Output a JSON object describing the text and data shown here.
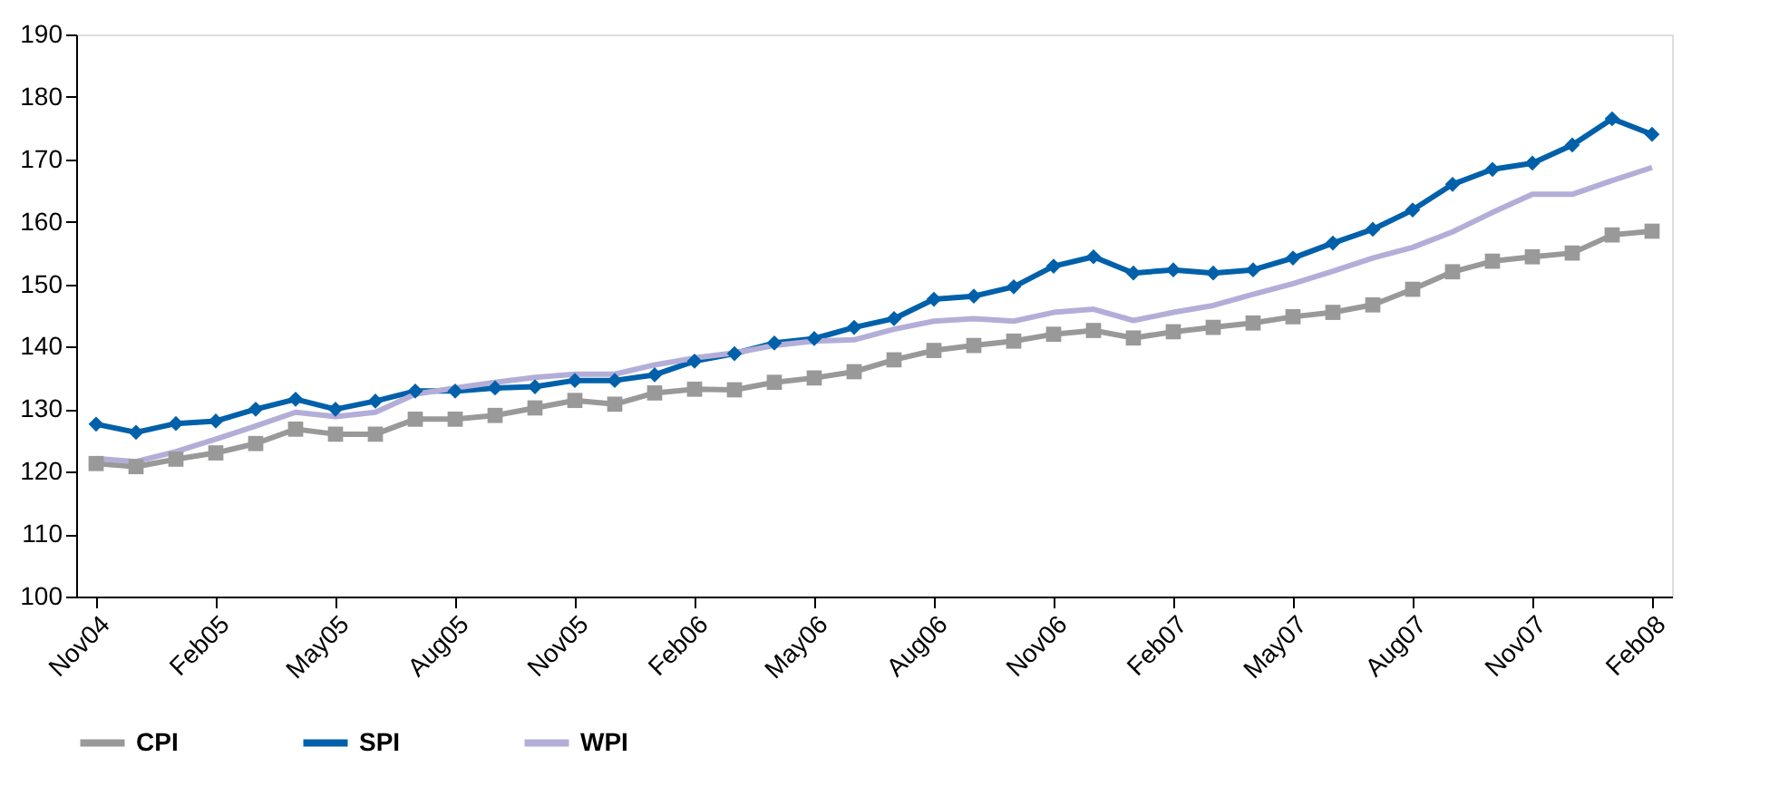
{
  "chart_data": {
    "type": "line",
    "categories": [
      "Nov04",
      null,
      null,
      "Feb05",
      null,
      null,
      "May05",
      null,
      null,
      "Aug05",
      null,
      null,
      "Nov05",
      null,
      null,
      "Feb06",
      null,
      null,
      "May06",
      null,
      null,
      "Aug06",
      null,
      null,
      "Nov06",
      null,
      null,
      "Feb07",
      null,
      null,
      "May07",
      null,
      null,
      "Aug07",
      null,
      null,
      "Nov07",
      null,
      null,
      "Feb08"
    ],
    "series": [
      {
        "name": "CPI",
        "color": "#999999",
        "marker": "square",
        "values": [
          121.3,
          120.8,
          122.0,
          123.0,
          124.5,
          126.8,
          126.0,
          126.0,
          128.4,
          128.4,
          129.0,
          130.2,
          131.4,
          130.8,
          132.6,
          133.2,
          133.1,
          134.3,
          135.0,
          136.0,
          137.9,
          139.4,
          140.2,
          140.9,
          142.0,
          142.6,
          141.4,
          142.4,
          143.1,
          143.8,
          144.8,
          145.5,
          146.7,
          149.2,
          152.0,
          153.7,
          154.4,
          155.0,
          157.9,
          158.5
        ]
      },
      {
        "name": "SPI",
        "color": "#0060aa",
        "marker": "diamond",
        "values": [
          127.6,
          126.3,
          127.7,
          128.1,
          130.0,
          131.6,
          130.0,
          131.3,
          132.9,
          132.9,
          133.4,
          133.6,
          134.6,
          134.6,
          135.5,
          137.7,
          138.9,
          140.6,
          141.3,
          143.1,
          144.5,
          147.6,
          148.1,
          149.6,
          152.9,
          154.4,
          151.8,
          152.3,
          151.8,
          152.3,
          154.2,
          156.6,
          158.8,
          161.9,
          166.0,
          168.4,
          169.4,
          172.3,
          176.5,
          174.0
        ]
      },
      {
        "name": "WPI",
        "color": "#b3aed8",
        "marker": "none",
        "values": [
          122.1,
          121.6,
          123.2,
          125.2,
          127.3,
          129.5,
          128.8,
          129.5,
          132.4,
          133.4,
          134.3,
          135.1,
          135.6,
          135.6,
          137.1,
          138.2,
          139.0,
          140.2,
          140.9,
          141.1,
          142.8,
          144.1,
          144.5,
          144.1,
          145.5,
          146.0,
          144.2,
          145.5,
          146.6,
          148.4,
          150.1,
          152.1,
          154.2,
          155.9,
          158.4,
          161.5,
          164.4,
          164.4,
          166.6,
          168.7
        ]
      }
    ],
    "ylim": [
      100,
      190
    ],
    "yticks": [
      100,
      110,
      120,
      130,
      140,
      150,
      160,
      170,
      180,
      190
    ],
    "grid": false,
    "legend": "bottom",
    "line_style": "solid"
  }
}
